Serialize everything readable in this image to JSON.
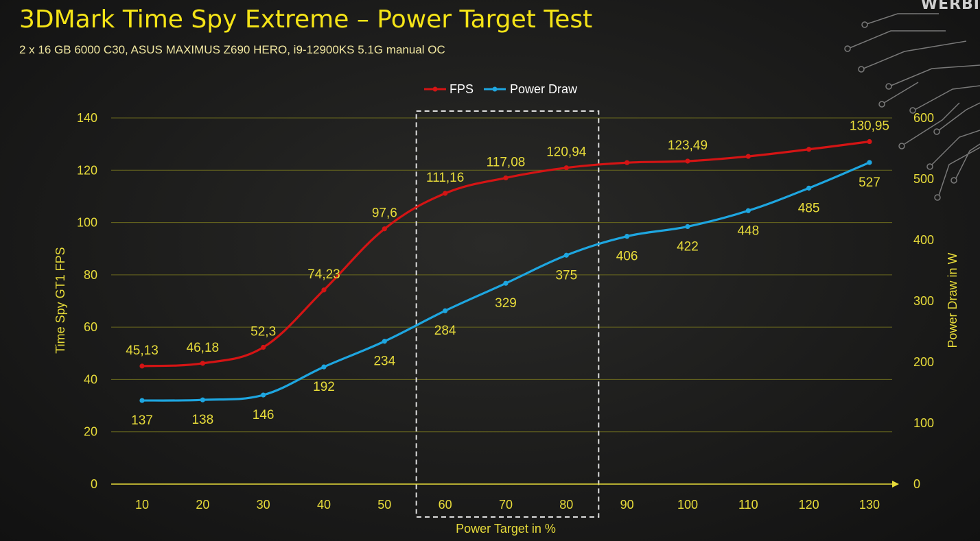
{
  "page": {
    "title": "3DMark Time Spy Extreme – Power Target Test",
    "subtitle": "2 x 16 GB 6000 C30, ASUS MAXIMUS Z690 HERO, i9-12900KS 5.1G manual OC",
    "brand": "WERBI"
  },
  "colors": {
    "title": "#f5e417",
    "axis_text": "#e8dc3a",
    "grid": "#6b6a1e",
    "fps": "#d41414",
    "power": "#1ea6e0",
    "highlight_box": "#dddddd"
  },
  "chart_data": {
    "type": "line",
    "x": [
      10,
      20,
      30,
      40,
      50,
      60,
      70,
      80,
      90,
      100,
      110,
      120,
      130
    ],
    "xlabel": "Power Target in %",
    "ylabel": "Time Spy GT1 FPS",
    "y2label": "Power Draw in W",
    "ylim": [
      0,
      140
    ],
    "y2lim": [
      0,
      600
    ],
    "yticks": [
      0,
      20,
      40,
      60,
      80,
      100,
      120,
      140
    ],
    "y2ticks": [
      0,
      100,
      200,
      300,
      400,
      500,
      600
    ],
    "grid": true,
    "legend": "top-center",
    "highlight_x_range": [
      60,
      80
    ],
    "series": [
      {
        "name": "FPS",
        "axis": "left",
        "color": "#d41414",
        "values": [
          45.13,
          46.18,
          52.3,
          74.23,
          97.6,
          111.16,
          117.08,
          120.94,
          122.9,
          123.49,
          125.3,
          128.0,
          130.95
        ],
        "labels": [
          "45,13",
          "46,18",
          "52,3",
          "74,23",
          "97,6",
          "111,16",
          "117,08",
          "120,94",
          null,
          "123,49",
          null,
          null,
          "130,95"
        ]
      },
      {
        "name": "Power Draw",
        "axis": "right",
        "color": "#1ea6e0",
        "values": [
          137,
          138,
          146,
          192,
          234,
          284,
          329,
          375,
          406,
          422,
          448,
          485,
          527
        ],
        "labels": [
          "137",
          "138",
          "146",
          "192",
          "234",
          "284",
          "329",
          "375",
          "406",
          "422",
          "448",
          "485",
          "527"
        ]
      }
    ]
  }
}
